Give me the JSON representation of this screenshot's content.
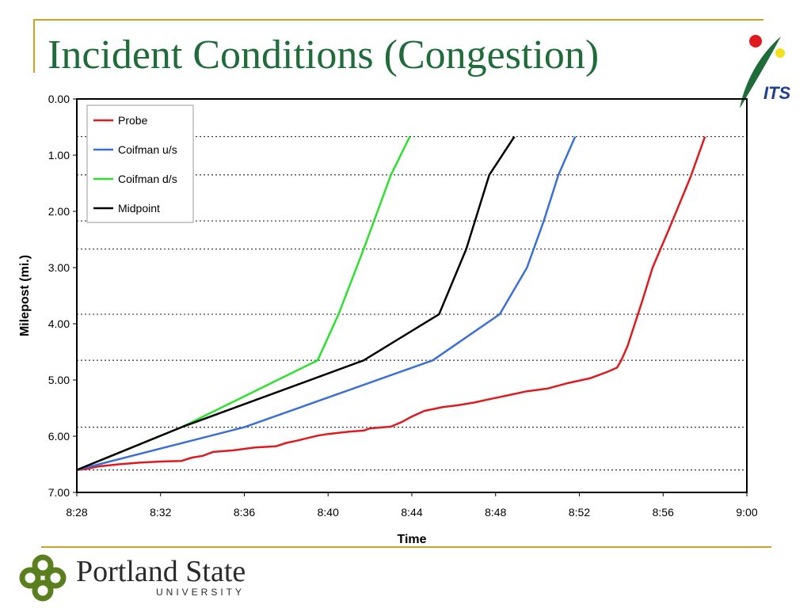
{
  "slide": {
    "title": "Incident Conditions (Congestion)",
    "logo_its_text": "ITS",
    "university": "Portland State",
    "university_sub": "UNIVERSITY"
  },
  "colors": {
    "title": "#1f6b3a",
    "accent_gold": "#c9a227",
    "probe": "#e0191e",
    "coifman_us": "#3a6fd8",
    "coifman_ds": "#2ee02e",
    "midpoint": "#000000"
  },
  "chart_data": {
    "type": "line",
    "xlabel": "Time",
    "ylabel": "Milepost (mi.)",
    "x_unit": "minutes past 8:00",
    "xlim": [
      "8:28",
      "9:00"
    ],
    "ylim": [
      7.0,
      0.0
    ],
    "y_inverted": true,
    "x_ticks": [
      "8:28",
      "8:32",
      "8:36",
      "8:40",
      "8:44",
      "8:48",
      "8:52",
      "8:56",
      "9:00"
    ],
    "y_ticks": [
      "0.00",
      "1.00",
      "2.00",
      "3.00",
      "4.00",
      "5.00",
      "6.00",
      "7.00"
    ],
    "reference_lines_mileposts": [
      0.67,
      1.35,
      2.17,
      2.67,
      3.83,
      4.65,
      5.84,
      6.6
    ],
    "legend_position": "top-left",
    "series": [
      {
        "name": "Probe",
        "color": "#e0191e",
        "points": [
          [
            "8:28.0",
            6.6
          ],
          [
            "8:28.5",
            6.58
          ],
          [
            "8:29.0",
            6.54
          ],
          [
            "8:30.0",
            6.5
          ],
          [
            "8:31.0",
            6.47
          ],
          [
            "8:32.0",
            6.45
          ],
          [
            "8:33.0",
            6.44
          ],
          [
            "8:33.5",
            6.38
          ],
          [
            "8:34.0",
            6.35
          ],
          [
            "8:34.5",
            6.28
          ],
          [
            "8:35.5",
            6.25
          ],
          [
            "8:36.5",
            6.2
          ],
          [
            "8:37.5",
            6.18
          ],
          [
            "8:38.0",
            6.12
          ],
          [
            "8:38.5",
            6.08
          ],
          [
            "8:39.5",
            5.99
          ],
          [
            "8:40.0",
            5.96
          ],
          [
            "8:41.0",
            5.92
          ],
          [
            "8:41.7",
            5.9
          ],
          [
            "8:42.0",
            5.86
          ],
          [
            "8:43.0",
            5.83
          ],
          [
            "8:43.5",
            5.75
          ],
          [
            "8:44.0",
            5.65
          ],
          [
            "8:44.6",
            5.55
          ],
          [
            "8:45.5",
            5.48
          ],
          [
            "8:46.2",
            5.45
          ],
          [
            "8:47.0",
            5.4
          ],
          [
            "8:47.6",
            5.35
          ],
          [
            "8:48.5",
            5.28
          ],
          [
            "8:49.5",
            5.2
          ],
          [
            "8:50.5",
            5.15
          ],
          [
            "8:51.5",
            5.05
          ],
          [
            "8:52.5",
            4.97
          ],
          [
            "8:53.3",
            4.86
          ],
          [
            "8:53.8",
            4.78
          ],
          [
            "8:54.0",
            4.65
          ],
          [
            "8:54.3",
            4.4
          ],
          [
            "8:55.0",
            3.6
          ],
          [
            "8:55.5",
            3.0
          ],
          [
            "8:56.3",
            2.3
          ],
          [
            "8:57.3",
            1.4
          ],
          [
            "8:58.0",
            0.67
          ]
        ]
      },
      {
        "name": "Coifman u/s",
        "color": "#3a6fd8",
        "points": [
          [
            "8:28.0",
            6.6
          ],
          [
            "8:32.0",
            6.22
          ],
          [
            "8:36.0",
            5.84
          ],
          [
            "8:45.0",
            4.65
          ],
          [
            "8:48.2",
            3.83
          ],
          [
            "8:49.5",
            3.0
          ],
          [
            "8:50.3",
            2.17
          ],
          [
            "8:51.0",
            1.35
          ],
          [
            "8:51.8",
            0.67
          ]
        ]
      },
      {
        "name": "Coifman d/s",
        "color": "#2ee02e",
        "points": [
          [
            "8:28.0",
            6.6
          ],
          [
            "8:33.0",
            5.84
          ],
          [
            "8:39.5",
            4.65
          ],
          [
            "8:40.5",
            3.83
          ],
          [
            "8:41.7",
            2.67
          ],
          [
            "8:43.0",
            1.35
          ],
          [
            "8:43.9",
            0.67
          ]
        ]
      },
      {
        "name": "Midpoint",
        "color": "#000000",
        "points": [
          [
            "8:28.0",
            6.6
          ],
          [
            "8:33.0",
            5.84
          ],
          [
            "8:41.7",
            4.65
          ],
          [
            "8:45.3",
            3.83
          ],
          [
            "8:46.6",
            2.67
          ],
          [
            "8:47.7",
            1.35
          ],
          [
            "8:48.9",
            0.67
          ]
        ]
      }
    ]
  }
}
